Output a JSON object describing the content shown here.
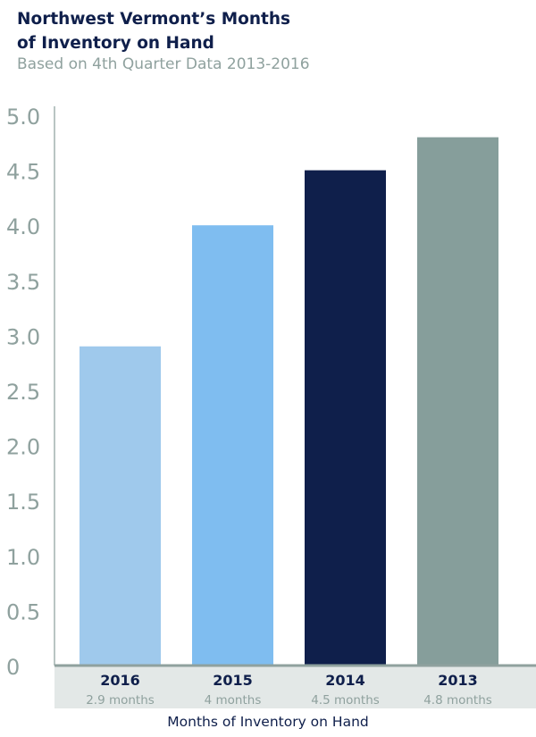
{
  "chart_data": {
    "type": "bar",
    "title_line1": "Northwest Vermont’s Months",
    "title_line2": "of Inventory on Hand",
    "subtitle": "Based on 4th Quarter Data 2013-2016",
    "xlabel": "Months of Inventory on Hand",
    "categories": [
      "2016",
      "2015",
      "2014",
      "2013"
    ],
    "category_sublabels": [
      "2.9 months",
      "4 months",
      "4.5 months",
      "4.8 months"
    ],
    "values": [
      2.9,
      4.0,
      4.5,
      4.8
    ],
    "bar_colors": [
      "#9fc9ec",
      "#7fbdf0",
      "#0f1f4b",
      "#869e9b"
    ],
    "ylim": [
      0,
      5.0
    ],
    "yticks": [
      "0",
      "0.5",
      "1.0",
      "1.5",
      "2.0",
      "2.5",
      "3.0",
      "3.5",
      "4.0",
      "4.5",
      "5.0"
    ],
    "grid": false,
    "legend": "none",
    "colors": {
      "title": "#0f1f4b",
      "axis_text": "#8fa19e",
      "axis_line": "#b9c5c3",
      "category_band": "#e3e8e7"
    }
  }
}
